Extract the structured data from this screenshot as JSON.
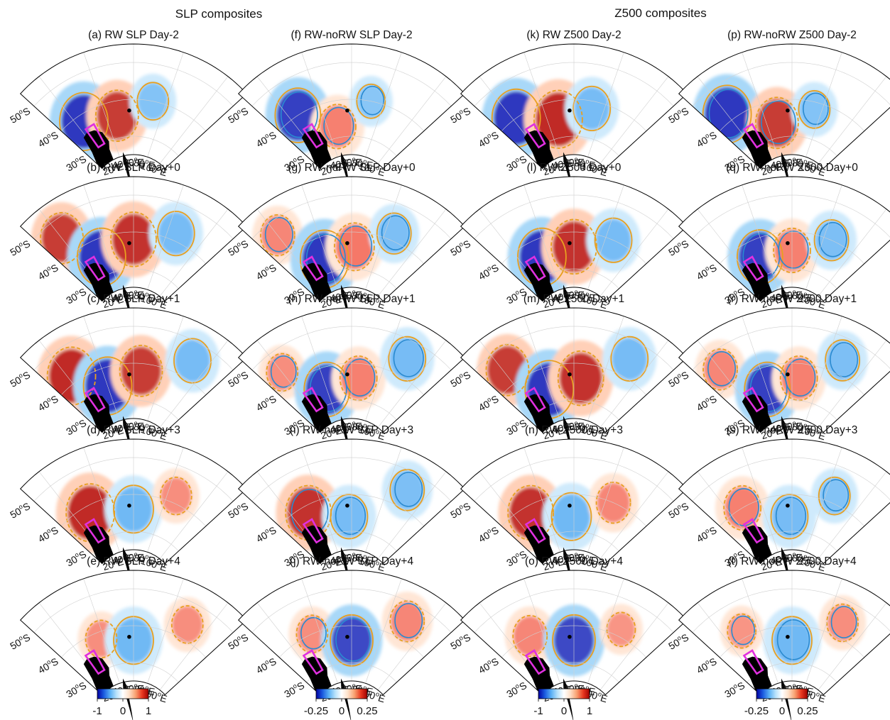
{
  "figure": {
    "group_titles": [
      "SLP composites",
      "Z500 composites"
    ],
    "lon_ticks": [
      "20",
      "40",
      "60",
      "80",
      "100"
    ],
    "lat_ticks": [
      "30",
      "40",
      "50"
    ],
    "degree_symbol": "o",
    "lon_suffix": "E",
    "lat_suffix": "S",
    "colors": {
      "land": "#000000",
      "box": "#e030e0",
      "contour_orange": "#e8a020",
      "contour_blue": "#2a8ad0",
      "stipple": "#8c8c8c",
      "neg_strong": "#1010b0",
      "neg": "#40a0f0",
      "pos": "#f04030",
      "pos_strong": "#b00000"
    },
    "colorbars": [
      {
        "column": 0,
        "ticks": [
          "-1",
          "0",
          "1"
        ]
      },
      {
        "column": 1,
        "ticks": [
          "-0.25",
          "0",
          "0.25"
        ]
      },
      {
        "column": 2,
        "ticks": [
          "-1",
          "0",
          "1"
        ]
      },
      {
        "column": 3,
        "ticks": [
          "-0.25",
          "0",
          "0.25"
        ]
      }
    ],
    "panels": [
      [
        "(a) RW SLP Day-2",
        "(b) RW SLP Day+0",
        "(c) RW SLP Day+1",
        "(d) RW SLP Day+3",
        "(e) RW SLP Day+4"
      ],
      [
        "(f) RW-noRW SLP Day-2",
        "(g) RW-noRW SLP Day+0",
        "(h) RW-noRW SLP Day+1",
        "(i) RW-noRW SLP Day+3",
        "(j) RW-noRW SLP Day+4"
      ],
      [
        "(k) RW Z500 Day-2",
        "(l) RW Z500 Day+0",
        "(m) RW Z500 Day+1",
        "(n) RW Z500 Day+3",
        "(o) RW Z500 Day+4"
      ],
      [
        "(p) RW-noRW  Z500 Day-2",
        "(q) RW-noRW  Z500 Day+0",
        "(r) RW-noRW  Z500 Day+1",
        "(s) RW-noRW  Z500 Day+3",
        "(t) RW-noRW  Z500 Day+4"
      ]
    ]
  },
  "chart_data": {
    "type": "heatmap",
    "title": "",
    "projection": "polar sector, 10-110E, 25-55S",
    "colorbar_ranges": [
      [
        -1,
        1
      ],
      [
        -0.25,
        0.25
      ],
      [
        -1,
        1
      ],
      [
        -0.25,
        0.25
      ]
    ],
    "contour_levels_shown": [
      -1.2,
      -0.9,
      -0.6,
      -0.3,
      0.3,
      0.6,
      0.9,
      1.2
    ],
    "anomaly_centers": {
      "note": "approximate centres (lon E, lat S) and normalized amplitude of main anomalies per panel",
      "columns": [
        [
          [
            {
              "lon": 25,
              "lat": 38,
              "amp": -1.0
            },
            {
              "lon": 48,
              "lat": 36,
              "amp": 0.8
            },
            {
              "lon": 72,
              "lat": 40,
              "amp": -0.4
            }
          ],
          [
            {
              "lon": 20,
              "lat": 45,
              "amp": 0.8
            },
            {
              "lon": 35,
              "lat": 35,
              "amp": -1.0
            },
            {
              "lon": 60,
              "lat": 38,
              "amp": 0.9
            },
            {
              "lon": 85,
              "lat": 42,
              "amp": -0.6
            }
          ],
          [
            {
              "lon": 22,
              "lat": 42,
              "amp": 1.0
            },
            {
              "lon": 40,
              "lat": 35,
              "amp": -1.0
            },
            {
              "lon": 65,
              "lat": 38,
              "amp": 0.8
            },
            {
              "lon": 92,
              "lat": 45,
              "amp": -0.6
            }
          ],
          [
            {
              "lon": 30,
              "lat": 38,
              "amp": 1.0
            },
            {
              "lon": 60,
              "lat": 36,
              "amp": -0.7
            },
            {
              "lon": 85,
              "lat": 42,
              "amp": 0.4
            }
          ],
          [
            {
              "lon": 38,
              "lat": 38,
              "amp": 0.4
            },
            {
              "lon": 60,
              "lat": 36,
              "amp": -0.7
            },
            {
              "lon": 90,
              "lat": 44,
              "amp": 0.4
            }
          ]
        ],
        [
          [
            {
              "lon": 25,
              "lat": 40,
              "amp": -0.9
            },
            {
              "lon": 48,
              "lat": 33,
              "amp": 0.6
            },
            {
              "lon": 72,
              "lat": 40,
              "amp": -0.3
            }
          ],
          [
            {
              "lon": 20,
              "lat": 46,
              "amp": 0.5
            },
            {
              "lon": 38,
              "lat": 34,
              "amp": -1.0
            },
            {
              "lon": 62,
              "lat": 36,
              "amp": 0.7
            },
            {
              "lon": 85,
              "lat": 42,
              "amp": -0.5
            }
          ],
          [
            {
              "lon": 20,
              "lat": 44,
              "amp": 0.4
            },
            {
              "lon": 40,
              "lat": 34,
              "amp": -0.9
            },
            {
              "lon": 65,
              "lat": 36,
              "amp": 0.6
            },
            {
              "lon": 90,
              "lat": 45,
              "amp": -0.6
            }
          ],
          [
            {
              "lon": 30,
              "lat": 38,
              "amp": 0.9
            },
            {
              "lon": 58,
              "lat": 34,
              "amp": -0.6
            },
            {
              "lon": 90,
              "lat": 45,
              "amp": -0.5
            }
          ],
          [
            {
              "lon": 35,
              "lat": 40,
              "amp": 0.4
            },
            {
              "lon": 60,
              "lat": 36,
              "amp": -0.8
            },
            {
              "lon": 90,
              "lat": 45,
              "amp": 0.5
            }
          ]
        ],
        [
          [
            {
              "lon": 22,
              "lat": 40,
              "amp": -1.0
            },
            {
              "lon": 48,
              "lat": 35,
              "amp": 1.0
            },
            {
              "lon": 72,
              "lat": 38,
              "amp": -0.6
            }
          ],
          [
            {
              "lon": 35,
              "lat": 35,
              "amp": -1.0
            },
            {
              "lon": 60,
              "lat": 36,
              "amp": 0.9
            },
            {
              "lon": 85,
              "lat": 40,
              "amp": -0.6
            }
          ],
          [
            {
              "lon": 22,
              "lat": 44,
              "amp": 0.8
            },
            {
              "lon": 40,
              "lat": 34,
              "amp": -1.0
            },
            {
              "lon": 65,
              "lat": 36,
              "amp": 0.9
            },
            {
              "lon": 90,
              "lat": 45,
              "amp": -0.6
            }
          ],
          [
            {
              "lon": 30,
              "lat": 38,
              "amp": 0.9
            },
            {
              "lon": 58,
              "lat": 34,
              "amp": -0.7
            },
            {
              "lon": 85,
              "lat": 40,
              "amp": 0.5
            }
          ],
          [
            {
              "lon": 32,
              "lat": 40,
              "amp": 0.5
            },
            {
              "lon": 60,
              "lat": 36,
              "amp": -0.8
            },
            {
              "lon": 88,
              "lat": 42,
              "amp": 0.3
            }
          ]
        ],
        [
          [
            {
              "lon": 20,
              "lat": 42,
              "amp": -1.0
            },
            {
              "lon": 48,
              "lat": 34,
              "amp": 0.8
            },
            {
              "lon": 75,
              "lat": 38,
              "amp": -0.4
            }
          ],
          [
            {
              "lon": 35,
              "lat": 35,
              "amp": -0.9
            },
            {
              "lon": 60,
              "lat": 35,
              "amp": 0.6
            },
            {
              "lon": 85,
              "lat": 40,
              "amp": -0.5
            }
          ],
          [
            {
              "lon": 20,
              "lat": 45,
              "amp": 0.5
            },
            {
              "lon": 40,
              "lat": 34,
              "amp": -0.9
            },
            {
              "lon": 65,
              "lat": 36,
              "amp": 0.6
            },
            {
              "lon": 88,
              "lat": 44,
              "amp": -0.5
            }
          ],
          [
            {
              "lon": 28,
              "lat": 40,
              "amp": 0.6
            },
            {
              "lon": 58,
              "lat": 34,
              "amp": -0.6
            },
            {
              "lon": 85,
              "lat": 42,
              "amp": -0.4
            }
          ],
          [
            {
              "lon": 30,
              "lat": 42,
              "amp": 0.3
            },
            {
              "lon": 60,
              "lat": 36,
              "amp": -0.7
            },
            {
              "lon": 88,
              "lat": 44,
              "amp": 0.4
            }
          ]
        ]
      ]
    }
  }
}
